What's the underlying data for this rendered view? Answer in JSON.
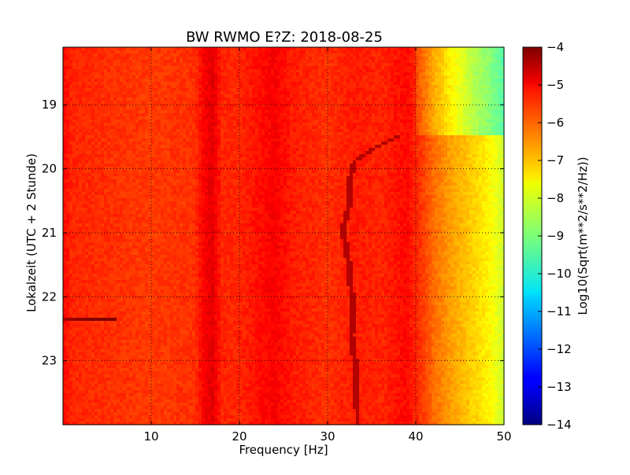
{
  "chart_data": {
    "type": "heatmap",
    "title": "BW RWMO E?Z: 2018-08-25",
    "xlabel": "Frequency [Hz]",
    "ylabel": "Lokalzeit (UTC + 2 Stunde)",
    "colorbar_label": "Log10(Sqrt(m**2/s**2/Hz))",
    "xlim": [
      0,
      50
    ],
    "ylim": [
      24.0,
      18.1
    ],
    "x_ticks": [
      10,
      20,
      30,
      40,
      50
    ],
    "y_ticks": [
      19,
      20,
      21,
      22,
      23
    ],
    "colorbar_range": [
      -14,
      -4
    ],
    "colorbar_ticks": [
      -4,
      -5,
      -6,
      -7,
      -8,
      -9,
      -10,
      -11,
      -12,
      -13,
      -14
    ],
    "colormap": "jet",
    "grid": true,
    "frequency_profile": {
      "hz": [
        0,
        1,
        5,
        10,
        15,
        16,
        17,
        18,
        20,
        24,
        26,
        28,
        30,
        33,
        36,
        39,
        40,
        41,
        42,
        44,
        46,
        48,
        50
      ],
      "level": [
        -5.3,
        -5.6,
        -5.7,
        -5.8,
        -5.7,
        -5.2,
        -5.0,
        -5.6,
        -5.6,
        -5.2,
        -5.5,
        -5.6,
        -5.7,
        -5.5,
        -5.6,
        -5.3,
        -5.6,
        -5.9,
        -6.3,
        -6.8,
        -7.2,
        -7.6,
        -8.2
      ]
    },
    "upper_segment": {
      "hour_end": 19.5,
      "level_offset_above_40hz": -1.2
    },
    "drifting_line": {
      "hour": [
        19.5,
        19.7,
        19.9,
        20.2,
        20.6,
        21.0,
        21.2,
        21.5,
        21.8,
        22.0,
        22.3,
        22.6,
        22.9,
        23.2,
        23.5,
        23.8
      ],
      "hz": [
        38,
        35,
        33,
        32.5,
        32.4,
        31.7,
        32.1,
        32.4,
        32.6,
        32.8,
        32.9,
        32.7,
        33.0,
        33.3,
        33.1,
        33.4
      ],
      "level": -4.5
    },
    "low_frequency_burst": {
      "hour": 22.35,
      "hz_range": [
        0,
        6
      ],
      "level": -4.4
    }
  }
}
